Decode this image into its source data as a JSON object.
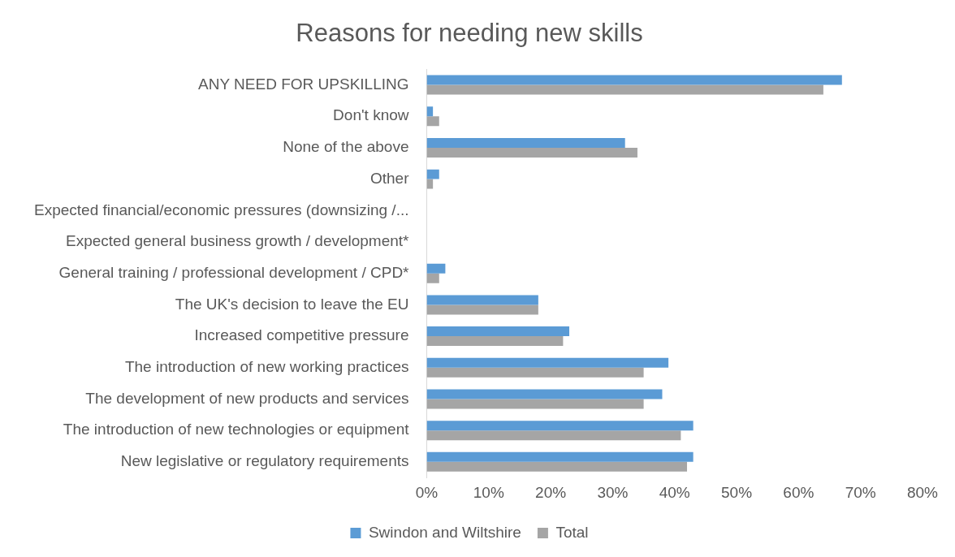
{
  "chart_data": {
    "type": "bar",
    "orientation": "horizontal",
    "title": "Reasons for needing new skills",
    "categories": [
      "ANY NEED FOR UPSKILLING",
      "Don't know",
      "None of the above",
      "Other",
      "Expected financial/economic pressures (downsizing /...",
      "Expected general business growth / development*",
      "General training / professional development / CPD*",
      "The UK's decision to leave the EU",
      "Increased competitive pressure",
      "The introduction of new working practices",
      "The development of new products and services",
      "The introduction of new technologies or equipment",
      "New legislative or regulatory requirements"
    ],
    "series": [
      {
        "name": "Swindon and Wiltshire",
        "color": "#5b9bd5",
        "values": [
          67,
          1,
          32,
          2,
          0,
          0,
          3,
          18,
          23,
          39,
          38,
          43,
          43
        ]
      },
      {
        "name": "Total",
        "color": "#a5a5a5",
        "values": [
          64,
          2,
          34,
          1,
          0,
          0,
          2,
          18,
          22,
          35,
          35,
          41,
          42
        ]
      }
    ],
    "xlim": [
      0,
      80
    ],
    "xticks": [
      {
        "value": 0,
        "label": "0%"
      },
      {
        "value": 10,
        "label": "10%"
      },
      {
        "value": 20,
        "label": "20%"
      },
      {
        "value": 30,
        "label": "30%"
      },
      {
        "value": 40,
        "label": "40%"
      },
      {
        "value": 50,
        "label": "50%"
      },
      {
        "value": 60,
        "label": "60%"
      },
      {
        "value": 70,
        "label": "70%"
      },
      {
        "value": 80,
        "label": "80%"
      }
    ],
    "grid": false,
    "legend": "bottom"
  }
}
